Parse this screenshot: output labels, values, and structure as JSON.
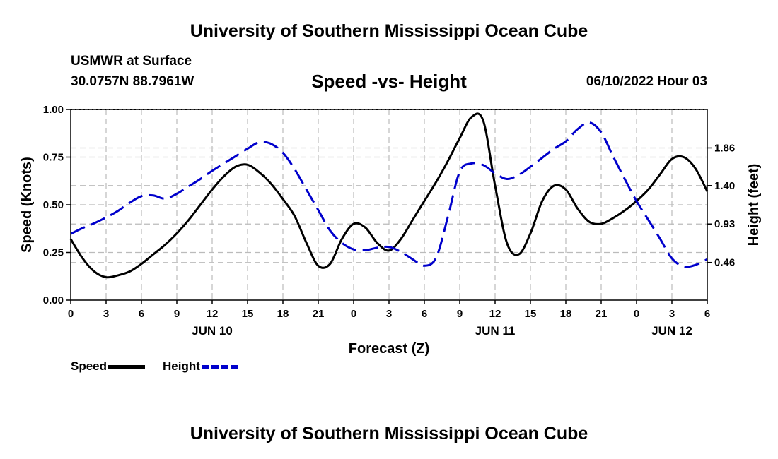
{
  "page_title": "University of Southern Mississippi Ocean Cube",
  "footer_title": "University of Southern Mississippi Ocean Cube",
  "station": "USMWR at Surface",
  "coordinates": "30.0757N  88.7961W",
  "datetime": "06/10/2022 Hour 03",
  "colors": {
    "speed": "#000000",
    "height": "#0000cc",
    "grid": "#bbbbbb"
  },
  "legend": [
    {
      "label": "Speed",
      "color": "#000000",
      "style": "solid"
    },
    {
      "label": "Height",
      "color": "#0000cc",
      "style": "dashed"
    }
  ],
  "chart_data": {
    "type": "line",
    "title": "Speed -vs- Height",
    "xlabel": "Forecast (Z)",
    "ylabel": "Speed (Knots)",
    "y2label": "Height (feet)",
    "xlim": [
      0,
      54
    ],
    "ylim": [
      0,
      1.0
    ],
    "y2lim": [
      0,
      2.33
    ],
    "x_ticks": [
      0,
      3,
      6,
      9,
      12,
      15,
      18,
      21,
      24,
      27,
      30,
      33,
      36,
      39,
      42,
      45,
      48,
      51,
      54
    ],
    "x_tick_labels": [
      "0",
      "3",
      "6",
      "9",
      "12",
      "15",
      "18",
      "21",
      "0",
      "3",
      "6",
      "9",
      "12",
      "15",
      "18",
      "21",
      "0",
      "3",
      "6"
    ],
    "date_labels": [
      {
        "x": 12,
        "label": "JUN 10"
      },
      {
        "x": 36,
        "label": "JUN 11"
      },
      {
        "x": 51,
        "label": "JUN 12"
      }
    ],
    "y_ticks": [
      0,
      0.25,
      0.5,
      0.75,
      1.0
    ],
    "y_tick_labels": [
      "0.00",
      "0.25",
      "0.50",
      "0.75",
      "1.00"
    ],
    "y2_ticks": [
      0.46,
      0.93,
      1.4,
      1.86
    ],
    "y2_tick_labels": [
      "0.46",
      "0.93",
      "1.40",
      "1.86"
    ],
    "grid": true,
    "series": [
      {
        "name": "Speed",
        "axis": "left",
        "x": [
          0,
          1,
          2,
          3,
          4,
          5,
          6,
          7,
          8,
          9,
          10,
          11,
          12,
          13,
          14,
          15,
          16,
          17,
          18,
          19,
          20,
          21,
          22,
          23,
          24,
          25,
          26,
          27,
          28,
          29,
          30,
          31,
          32,
          33,
          34,
          35,
          36,
          37,
          38,
          39,
          40,
          41,
          42,
          43,
          44,
          45,
          46,
          47,
          48,
          49,
          50,
          51,
          52,
          53,
          54
        ],
        "values": [
          0.32,
          0.22,
          0.15,
          0.12,
          0.13,
          0.15,
          0.19,
          0.24,
          0.29,
          0.35,
          0.42,
          0.5,
          0.58,
          0.65,
          0.7,
          0.71,
          0.67,
          0.61,
          0.53,
          0.44,
          0.3,
          0.18,
          0.19,
          0.32,
          0.4,
          0.38,
          0.3,
          0.26,
          0.32,
          0.42,
          0.52,
          0.62,
          0.73,
          0.85,
          0.96,
          0.94,
          0.6,
          0.3,
          0.24,
          0.35,
          0.52,
          0.6,
          0.58,
          0.48,
          0.41,
          0.4,
          0.43,
          0.47,
          0.52,
          0.58,
          0.66,
          0.74,
          0.75,
          0.69,
          0.57
        ]
      },
      {
        "name": "Height",
        "axis": "right",
        "x": [
          0,
          1,
          2,
          3,
          4,
          5,
          6,
          7,
          8,
          9,
          10,
          11,
          12,
          13,
          14,
          15,
          16,
          17,
          18,
          19,
          20,
          21,
          22,
          23,
          24,
          25,
          26,
          27,
          28,
          29,
          30,
          31,
          32,
          33,
          34,
          35,
          36,
          37,
          38,
          39,
          40,
          41,
          42,
          43,
          44,
          45,
          46,
          47,
          48,
          49,
          50,
          51,
          52,
          53,
          54
        ],
        "values": [
          0.81,
          0.88,
          0.94,
          1.01,
          1.09,
          1.19,
          1.27,
          1.28,
          1.24,
          1.3,
          1.39,
          1.48,
          1.58,
          1.67,
          1.76,
          1.85,
          1.93,
          1.91,
          1.8,
          1.6,
          1.35,
          1.1,
          0.85,
          0.7,
          0.62,
          0.61,
          0.64,
          0.65,
          0.59,
          0.5,
          0.42,
          0.52,
          1.02,
          1.57,
          1.67,
          1.65,
          1.55,
          1.48,
          1.53,
          1.63,
          1.74,
          1.85,
          1.94,
          2.09,
          2.17,
          2.05,
          1.76,
          1.48,
          1.21,
          0.98,
          0.75,
          0.51,
          0.41,
          0.43,
          0.5
        ]
      }
    ]
  }
}
